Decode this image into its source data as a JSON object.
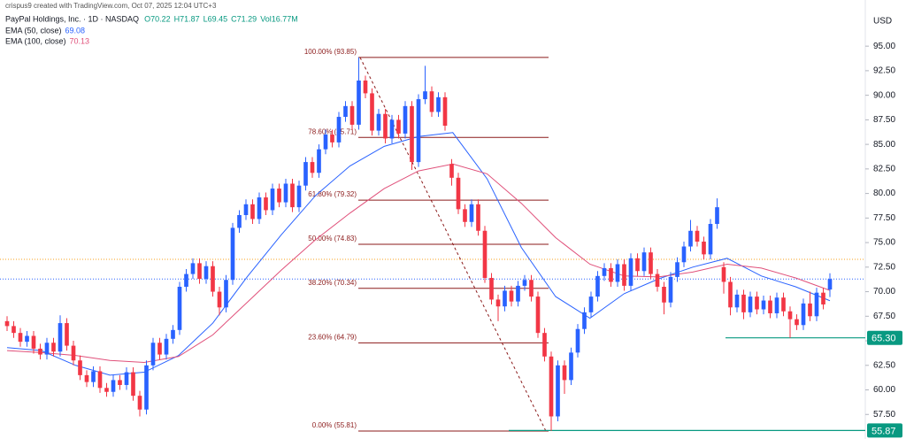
{
  "header": {
    "credit": "crispus9 created with TradingView.com, Oct 07, 2025 12:04 UTC+3"
  },
  "chart_data": {
    "type": "candlestick",
    "title": "PayPal Holdings, Inc. · 1D · NASDAQ",
    "ohlc_labels": [
      "O70.22",
      "H71.87",
      "L69.45",
      "C71.29",
      "Vol16.77M"
    ],
    "currency": "USD",
    "ylim": [
      55,
      99.7
    ],
    "yticks": [
      {
        "value": 57.5,
        "label": "57.50"
      },
      {
        "value": 60,
        "label": "60.00"
      },
      {
        "value": 62.5,
        "label": "62.50"
      },
      {
        "value": 65,
        "label": "65.00"
      },
      {
        "value": 67.5,
        "label": "67.50"
      },
      {
        "value": 70,
        "label": "70.00"
      },
      {
        "value": 72.5,
        "label": "72.50"
      },
      {
        "value": 75,
        "label": "75.00"
      },
      {
        "value": 77.5,
        "label": "77.50"
      },
      {
        "value": 80,
        "label": "80.00"
      },
      {
        "value": 82.5,
        "label": "82.50"
      },
      {
        "value": 85,
        "label": "85.00"
      },
      {
        "value": 87.5,
        "label": "87.50"
      },
      {
        "value": 90,
        "label": "90.00"
      },
      {
        "value": 92.5,
        "label": "92.50"
      },
      {
        "value": 95,
        "label": "95.00"
      }
    ],
    "up_color": "#2962ff",
    "down_color": "#f23645",
    "candles": [
      [
        67.0,
        67.5,
        66.0,
        66.5
      ],
      [
        66.5,
        67.0,
        65.3,
        65.8
      ],
      [
        65.8,
        66.3,
        64.4,
        64.9
      ],
      [
        64.9,
        66.0,
        64.4,
        65.5
      ],
      [
        65.5,
        66.0,
        63.7,
        64.2
      ],
      [
        64.2,
        64.7,
        63.1,
        63.6
      ],
      [
        63.6,
        65.3,
        63.1,
        64.8
      ],
      [
        64.8,
        65.3,
        63.4,
        63.9
      ],
      [
        63.9,
        67.6,
        63.4,
        66.8
      ],
      [
        66.8,
        67.3,
        64.0,
        64.5
      ],
      [
        64.5,
        65.0,
        62.5,
        63.0
      ],
      [
        63.0,
        63.5,
        61.0,
        61.5
      ],
      [
        61.5,
        62.0,
        60.3,
        60.8
      ],
      [
        60.8,
        62.4,
        60.3,
        61.9
      ],
      [
        61.9,
        62.4,
        59.7,
        60.2
      ],
      [
        60.2,
        60.7,
        59.3,
        59.8
      ],
      [
        59.8,
        61.5,
        59.3,
        61.0
      ],
      [
        61.0,
        61.5,
        60.0,
        60.5
      ],
      [
        60.5,
        62.3,
        60.0,
        61.8
      ],
      [
        61.8,
        62.3,
        58.9,
        59.4
      ],
      [
        59.4,
        59.9,
        57.3,
        58.0
      ],
      [
        58.0,
        63.0,
        57.5,
        62.5
      ],
      [
        62.5,
        65.3,
        62.0,
        64.8
      ],
      [
        64.8,
        65.3,
        63.1,
        63.6
      ],
      [
        63.6,
        65.7,
        63.1,
        65.2
      ],
      [
        65.2,
        66.6,
        64.7,
        66.1
      ],
      [
        66.1,
        71.0,
        65.6,
        70.5
      ],
      [
        70.5,
        72.3,
        70.0,
        71.8
      ],
      [
        71.8,
        73.4,
        71.3,
        72.9
      ],
      [
        72.9,
        73.4,
        70.8,
        71.3
      ],
      [
        71.3,
        73.1,
        70.8,
        72.6
      ],
      [
        72.6,
        73.1,
        69.5,
        70.0
      ],
      [
        70.0,
        70.5,
        67.6,
        68.4
      ],
      [
        68.4,
        71.7,
        67.9,
        71.2
      ],
      [
        71.2,
        77.0,
        70.7,
        76.5
      ],
      [
        76.5,
        78.3,
        76.0,
        77.8
      ],
      [
        77.8,
        79.4,
        77.3,
        78.9
      ],
      [
        78.9,
        79.4,
        76.9,
        77.4
      ],
      [
        77.4,
        80.1,
        76.9,
        79.6
      ],
      [
        79.6,
        80.1,
        77.8,
        78.3
      ],
      [
        78.3,
        81.0,
        77.8,
        80.5
      ],
      [
        80.5,
        81.0,
        78.6,
        79.1
      ],
      [
        79.1,
        81.5,
        78.6,
        81.0
      ],
      [
        81.0,
        81.5,
        78.1,
        78.6
      ],
      [
        78.6,
        81.3,
        78.1,
        80.8
      ],
      [
        80.8,
        83.7,
        80.3,
        83.2
      ],
      [
        83.2,
        83.7,
        81.6,
        82.1
      ],
      [
        82.1,
        85.0,
        81.6,
        84.5
      ],
      [
        84.5,
        86.5,
        84.0,
        86.0
      ],
      [
        86.0,
        86.5,
        84.7,
        85.2
      ],
      [
        85.2,
        88.3,
        84.7,
        87.8
      ],
      [
        87.8,
        89.4,
        87.3,
        88.9
      ],
      [
        88.9,
        89.4,
        86.5,
        87.0
      ],
      [
        87.0,
        93.85,
        86.5,
        91.5
      ],
      [
        91.5,
        92.0,
        89.7,
        90.2
      ],
      [
        90.2,
        90.7,
        85.9,
        86.4
      ],
      [
        86.4,
        88.6,
        85.9,
        88.1
      ],
      [
        88.1,
        88.6,
        85.1,
        85.6
      ],
      [
        85.6,
        88.0,
        85.1,
        87.5
      ],
      [
        87.5,
        88.0,
        85.6,
        86.1
      ],
      [
        86.1,
        89.4,
        85.6,
        88.9
      ],
      [
        88.9,
        89.4,
        82.4,
        83.2
      ],
      [
        83.2,
        90.1,
        82.7,
        89.6
      ],
      [
        89.6,
        93.0,
        89.1,
        90.4
      ],
      [
        90.4,
        90.9,
        87.8,
        88.3
      ],
      [
        88.3,
        90.3,
        87.8,
        89.8
      ],
      [
        89.8,
        90.3,
        86.4,
        86.9
      ],
      [
        83.0,
        83.5,
        80.8,
        81.6
      ],
      [
        81.6,
        82.1,
        77.9,
        78.4
      ],
      [
        78.4,
        78.9,
        76.6,
        77.1
      ],
      [
        77.1,
        79.4,
        76.6,
        78.9
      ],
      [
        78.9,
        79.4,
        75.7,
        76.2
      ],
      [
        76.2,
        76.7,
        70.9,
        71.4
      ],
      [
        71.4,
        71.9,
        68.7,
        69.2
      ],
      [
        69.2,
        69.7,
        67.0,
        68.5
      ],
      [
        68.5,
        70.6,
        68.0,
        70.1
      ],
      [
        70.1,
        70.6,
        68.5,
        69.0
      ],
      [
        69.0,
        71.1,
        68.5,
        70.6
      ],
      [
        70.6,
        71.7,
        70.1,
        71.2
      ],
      [
        71.2,
        71.7,
        69.0,
        69.5
      ],
      [
        69.5,
        70.0,
        65.3,
        65.8
      ],
      [
        65.8,
        66.3,
        62.9,
        63.4
      ],
      [
        63.4,
        63.9,
        55.81,
        57.3
      ],
      [
        57.3,
        63.0,
        56.8,
        62.5
      ],
      [
        62.5,
        63.0,
        59.6,
        61.0
      ],
      [
        61.0,
        64.3,
        60.5,
        63.8
      ],
      [
        63.8,
        66.7,
        63.3,
        66.2
      ],
      [
        66.2,
        68.4,
        65.7,
        67.9
      ],
      [
        67.9,
        70.0,
        67.4,
        69.5
      ],
      [
        69.5,
        72.1,
        69.0,
        71.6
      ],
      [
        71.6,
        72.9,
        71.1,
        72.4
      ],
      [
        72.4,
        72.9,
        70.5,
        71.0
      ],
      [
        71.0,
        73.3,
        70.5,
        72.8
      ],
      [
        72.8,
        73.3,
        70.1,
        70.6
      ],
      [
        70.6,
        73.9,
        70.1,
        73.4
      ],
      [
        73.4,
        73.9,
        71.6,
        72.1
      ],
      [
        72.1,
        74.5,
        71.6,
        74.0
      ],
      [
        74.0,
        74.5,
        71.3,
        71.8
      ],
      [
        71.8,
        72.3,
        70.0,
        70.5
      ],
      [
        70.5,
        71.0,
        67.7,
        68.9
      ],
      [
        68.9,
        72.0,
        68.4,
        71.5
      ],
      [
        71.5,
        73.5,
        71.0,
        73.0
      ],
      [
        73.0,
        75.1,
        72.5,
        74.6
      ],
      [
        74.6,
        77.3,
        74.1,
        76.2
      ],
      [
        76.2,
        76.7,
        74.6,
        75.1
      ],
      [
        75.1,
        75.6,
        73.3,
        73.8
      ],
      [
        73.8,
        77.4,
        73.3,
        76.9
      ],
      [
        76.9,
        79.5,
        76.4,
        78.6
      ],
      [
        72.5,
        73.0,
        69.8,
        71.0
      ],
      [
        71.0,
        71.5,
        67.6,
        68.4
      ],
      [
        68.4,
        70.2,
        67.9,
        69.7
      ],
      [
        69.7,
        70.2,
        67.2,
        67.9
      ],
      [
        67.9,
        70.0,
        67.4,
        69.5
      ],
      [
        69.5,
        70.0,
        67.7,
        68.2
      ],
      [
        68.2,
        69.6,
        67.7,
        69.1
      ],
      [
        69.1,
        69.6,
        67.3,
        67.8
      ],
      [
        67.8,
        69.9,
        67.3,
        69.4
      ],
      [
        69.4,
        69.9,
        67.5,
        68.0
      ],
      [
        68.0,
        68.5,
        65.3,
        67.2
      ],
      [
        67.2,
        67.7,
        66.1,
        66.6
      ],
      [
        66.6,
        69.3,
        66.1,
        68.8
      ],
      [
        68.8,
        70.0,
        67.0,
        67.5
      ],
      [
        67.5,
        70.4,
        67.0,
        69.9
      ],
      [
        69.9,
        70.4,
        68.2,
        68.7
      ],
      [
        70.22,
        71.87,
        69.45,
        71.29
      ]
    ],
    "series": [
      {
        "name": "EMA (50, close)",
        "color": "#2962ff",
        "values": [
          64.3,
          64.0,
          62.5,
          61.5,
          61.8,
          63.5,
          66.8,
          71.5,
          75.8,
          79.8,
          82.8,
          84.8,
          85.8,
          86.2,
          81.5,
          74.5,
          69.5,
          67.3,
          69.8,
          71.3,
          72.5,
          73.4,
          71.6,
          70.5,
          69.08
        ]
      },
      {
        "name": "EMA (100, close)",
        "color": "#e0507a",
        "values": [
          64.0,
          63.8,
          63.5,
          63.0,
          62.8,
          63.4,
          65.6,
          68.9,
          72.2,
          75.3,
          78.0,
          80.5,
          82.3,
          83.0,
          82.0,
          79.0,
          75.5,
          72.8,
          71.6,
          71.5,
          72.0,
          72.8,
          72.4,
          71.4,
          70.13
        ]
      }
    ],
    "fib_color": "#8b1a1a",
    "fib_levels": [
      {
        "value": 93.85,
        "label": "100.00% (93.85)"
      },
      {
        "value": 85.71,
        "label": "78.60% (85.71)"
      },
      {
        "value": 79.32,
        "label": "61.80% (79.32)"
      },
      {
        "value": 74.83,
        "label": "50.00% (74.83)"
      },
      {
        "value": 70.34,
        "label": "38.20% (70.34)"
      },
      {
        "value": 64.79,
        "label": "23.60% (64.79)"
      },
      {
        "value": 55.81,
        "label": "0.00% (55.81)"
      }
    ],
    "level_color": "#089981",
    "levels": [
      {
        "value": 65.3,
        "label": "65.30"
      },
      {
        "value": 55.87,
        "label": "55.87"
      }
    ],
    "price_lines": [
      {
        "value": 71.29,
        "color": "#2962ff"
      },
      {
        "value": 73.3,
        "color": "#f7a21b"
      }
    ]
  }
}
